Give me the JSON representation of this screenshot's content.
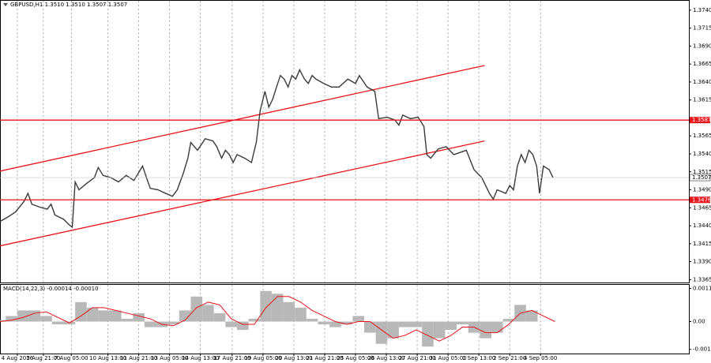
{
  "chart_data": [
    {
      "type": "line",
      "title": "GBPUSD,H1  1.3510 1.3510 1.3507 1.3507",
      "xlim": [
        0,
        715
      ],
      "ylim": [
        1.3361,
        1.3753
      ],
      "yticks": [
        {
          "value": 1.374,
          "label": "1.3740"
        },
        1.3715,
        {
          "value": 1.369,
          "label": "1.3690"
        },
        1.3665,
        {
          "value": 1.364,
          "label": "1.3640"
        },
        1.3615,
        1.3565,
        {
          "value": 1.354,
          "label": "1.3540"
        },
        1.3515,
        {
          "value": 1.349,
          "label": "1.3490"
        },
        1.3465,
        {
          "value": 1.344,
          "label": "1.3440"
        },
        1.3415,
        {
          "value": 1.339,
          "label": "1.3390"
        },
        1.3365
      ],
      "x": [
        0,
        8,
        16,
        25,
        29,
        33,
        41,
        49,
        53,
        57,
        66,
        72,
        75,
        78,
        82,
        90,
        98,
        102,
        107,
        115,
        123,
        131,
        139,
        148,
        152,
        156,
        164,
        172,
        179,
        184,
        190,
        195,
        198,
        205,
        213,
        221,
        225,
        230,
        234,
        238,
        242,
        246,
        254,
        261,
        266,
        270,
        275,
        279,
        283,
        287,
        291,
        295,
        299,
        303,
        307,
        311,
        316,
        320,
        324,
        328,
        336,
        344,
        352,
        361,
        369,
        373,
        381,
        389,
        393,
        402,
        410,
        414,
        418,
        426,
        434,
        440,
        443,
        447,
        455,
        463,
        471,
        484,
        492,
        500,
        508,
        512,
        516,
        525,
        529,
        533,
        537,
        541,
        545,
        549,
        553,
        557,
        560,
        564,
        570,
        574
      ],
      "series": [
        {
          "color": "#3a3a3a",
          "values": [
            1.3446,
            1.3452,
            1.3459,
            1.3474,
            1.3485,
            1.347,
            1.3466,
            1.3463,
            1.347,
            1.3455,
            1.3449,
            1.3441,
            1.3438,
            1.3501,
            1.349,
            1.3499,
            1.3507,
            1.3521,
            1.351,
            1.3507,
            1.3501,
            1.351,
            1.3503,
            1.3523,
            1.3507,
            1.3492,
            1.349,
            1.3485,
            1.3481,
            1.349,
            1.3512,
            1.3534,
            1.3556,
            1.3545,
            1.3561,
            1.3558,
            1.355,
            1.3534,
            1.3545,
            1.3539,
            1.3528,
            1.3539,
            1.3534,
            1.3528,
            1.3556,
            1.36,
            1.3627,
            1.3605,
            1.3616,
            1.3633,
            1.3649,
            1.3644,
            1.3633,
            1.3649,
            1.3644,
            1.3657,
            1.3644,
            1.3638,
            1.3649,
            1.3644,
            1.3638,
            1.3633,
            1.3633,
            1.3644,
            1.3638,
            1.3649,
            1.3633,
            1.3627,
            1.3589,
            1.3591,
            1.3587,
            1.358,
            1.3594,
            1.3589,
            1.3591,
            1.3578,
            1.3539,
            1.3534,
            1.3547,
            1.355,
            1.3539,
            1.3545,
            1.3518,
            1.3507,
            1.3485,
            1.3477,
            1.349,
            1.3485,
            1.3496,
            1.349,
            1.3523,
            1.3539,
            1.3528,
            1.3545,
            1.3539,
            1.3523,
            1.3485,
            1.3523,
            1.3518,
            1.3507
          ]
        }
      ],
      "hlines": [
        {
          "value": 1.3587,
          "color": "#e8141a"
        },
        {
          "value": 1.3476,
          "color": "#e8141a"
        }
      ],
      "trendlines": [
        {
          "x": [
            0,
            503
          ],
          "values": [
            1.3516,
            1.3663
          ],
          "color": "#e8141a"
        },
        {
          "x": [
            0,
            503
          ],
          "values": [
            1.3412,
            1.3558
          ],
          "color": "#e8141a"
        }
      ],
      "last_price": 1.3507
    },
    {
      "type": "bar",
      "title": "MACD(14,22,3) -0.00014 -0.00010",
      "xlim": [
        0,
        715
      ],
      "ylim": [
        -0.00115,
        0.00132
      ],
      "yticks": [
        0.00119,
        {
          "value": 0,
          "label": "0.00"
        },
        -0.001
      ],
      "xticks": [
        {
          "value": 18,
          "label": "4 Aug 2026"
        },
        {
          "value": 45,
          "label": "5 Aug 21:00"
        },
        {
          "value": 74,
          "label": "7 Aug 05:00"
        },
        {
          "value": 112,
          "label": "10 Aug 13:00"
        },
        {
          "value": 144,
          "label": "11 Aug 21:00"
        },
        {
          "value": 176,
          "label": "13 Aug 05:00"
        },
        {
          "value": 208,
          "label": "14 Aug 13:00"
        },
        {
          "value": 241,
          "label": "17 Aug 21:00"
        },
        {
          "value": 273,
          "label": "19 Aug 05:00"
        },
        {
          "value": 305,
          "label": "20 Aug 13:00"
        },
        {
          "value": 337,
          "label": "21 Aug 21:00"
        },
        {
          "value": 369,
          "label": "25 Aug 05:00"
        },
        {
          "value": 401,
          "label": "26 Aug 13:00"
        },
        {
          "value": 433,
          "label": "27 Aug 21:00"
        },
        {
          "value": 465,
          "label": "31 Aug 05:00"
        },
        {
          "value": 497,
          "label": "1 Sep 13:00"
        },
        {
          "value": 529,
          "label": "2 Sep 21:00"
        },
        {
          "value": 561,
          "label": "4 Sep 05:00"
        }
      ],
      "x": [
        0,
        12,
        24,
        36,
        48,
        60,
        72,
        84,
        96,
        108,
        120,
        132,
        144,
        156,
        168,
        180,
        192,
        204,
        216,
        228,
        240,
        252,
        264,
        276,
        288,
        300,
        312,
        324,
        336,
        348,
        360,
        372,
        384,
        396,
        408,
        420,
        432,
        444,
        456,
        468,
        480,
        492,
        504,
        516,
        528,
        540,
        552,
        564,
        576
      ],
      "series": [
        {
          "color": "#b8b8b8",
          "values": [
            5e-05,
            0.0002,
            0.0004,
            0.0004,
            0.0002,
            -0.0001,
            -0.0001,
            0.0007,
            0.0005,
            0.0004,
            0.0004,
            0.0001,
            0.0003,
            -0.0002,
            -0.0002,
            -0.0001,
            0.0004,
            0.0009,
            0.0006,
            0.0003,
            -0.0002,
            -0.0003,
            0.0001,
            0.0011,
            0.001,
            0.0007,
            0.0005,
            0.0001,
            -0.0001,
            -0.0002,
            -0.0001,
            0.0002,
            -0.0004,
            -0.0008,
            -0.0006,
            -0.0002,
            -0.0002,
            -0.0009,
            -0.0006,
            -0.0003,
            -0.0001,
            -0.0004,
            -0.0006,
            -0.0004,
            0.0001,
            0.0006,
            0.0004,
            0,
            0
          ]
        },
        {
          "color": "#e8141a",
          "values": [
            0,
            5e-05,
            0.00015,
            0.0003,
            0.00035,
            0.00015,
            -5e-05,
            0.0002,
            0.0005,
            0.0005,
            0.0004,
            0.0003,
            0.0002,
            0.0001,
            -0.0001,
            -0.00015,
            5e-05,
            0.0005,
            0.0007,
            0.0006,
            0.0001,
            -0.0001,
            -0.0001,
            0.0005,
            0.0009,
            0.0009,
            0.0007,
            0.0004,
            0.0002,
            0,
            -0.0001,
            0,
            0,
            -0.0003,
            -0.0006,
            -0.0005,
            -0.0003,
            -0.0005,
            -0.0007,
            -0.0005,
            -0.0002,
            -0.0002,
            -0.0004,
            -0.0004,
            -0.0001,
            0.0003,
            0.0004,
            0.0002,
            0
          ]
        }
      ]
    }
  ]
}
